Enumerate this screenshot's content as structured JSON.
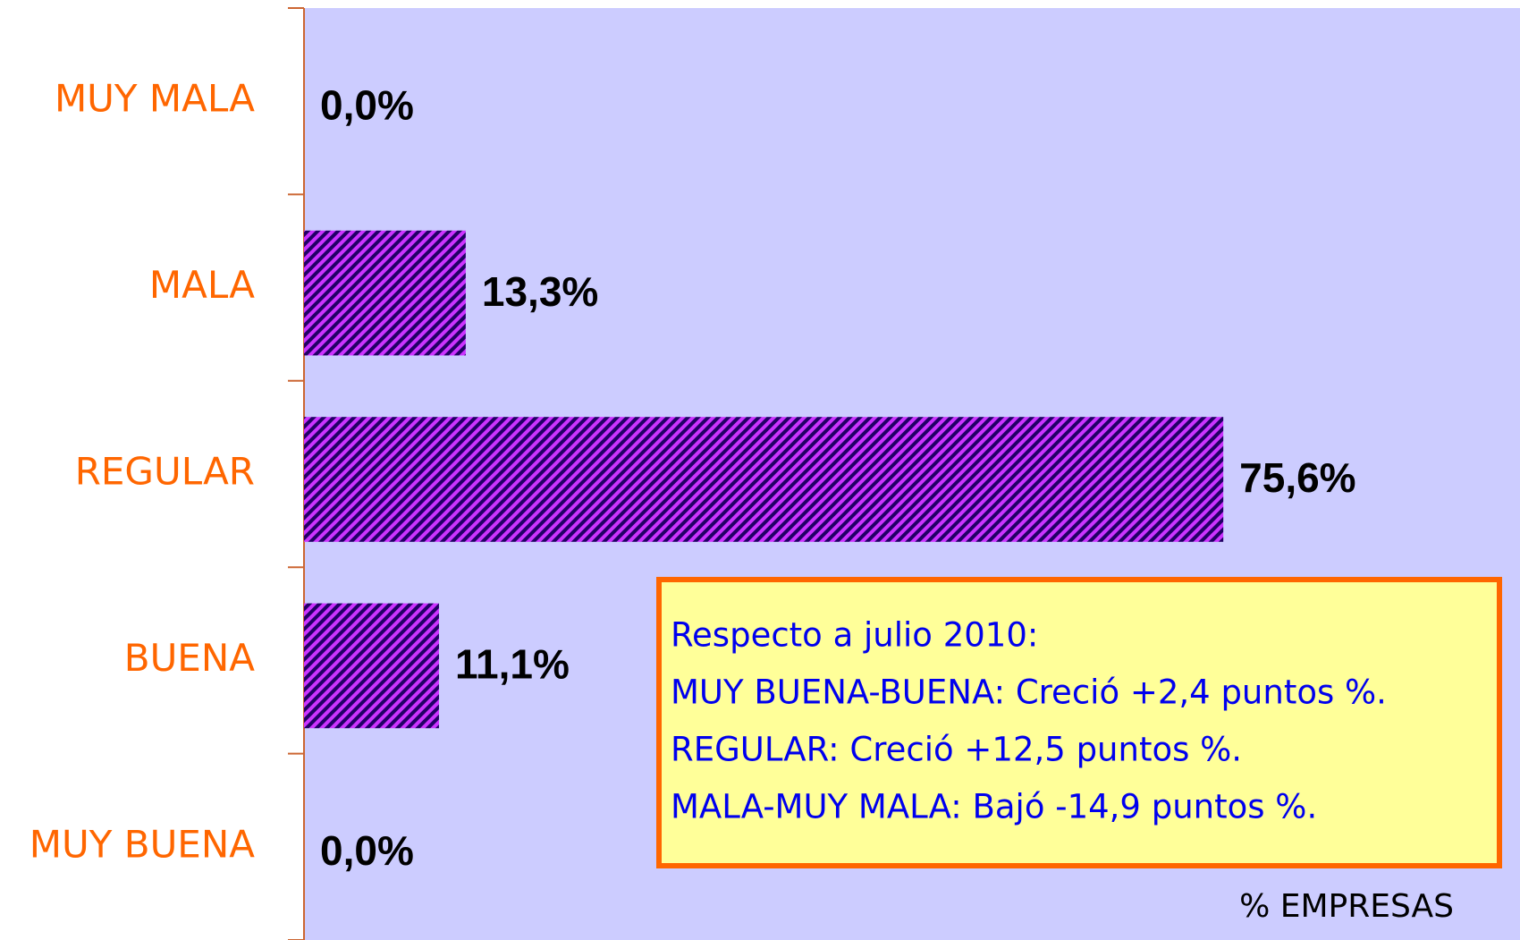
{
  "chart_data": {
    "type": "bar",
    "orientation": "horizontal",
    "categories": [
      "MUY MALA",
      "MALA",
      "REGULAR",
      "BUENA",
      "MUY BUENA"
    ],
    "values": [
      0,
      13.3,
      75.6,
      11.1,
      0
    ],
    "value_labels": [
      "0,0%",
      "13,3%",
      "75,6%",
      "11,1%",
      "0,0%"
    ],
    "color": "#cc33ff",
    "xlim": [
      0,
      100
    ],
    "x_label": "% EMPRESAS",
    "annotation": [
      "Respecto a julio 2010:",
      "MUY BUENA-BUENA: Creció +2,4 puntos %.",
      "REGULAR: Creció +12,5 puntos %.",
      "MALA-MUY MALA: Bajó -14,9 puntos %."
    ]
  }
}
